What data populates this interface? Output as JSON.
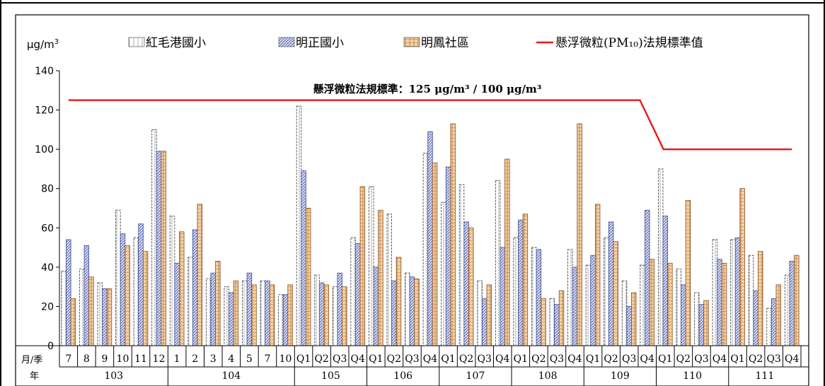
{
  "chart_data": {
    "type": "bar",
    "ylabel": "μg/m",
    "ylabel_sup": "3",
    "ylim": [
      0,
      140
    ],
    "yticks": [
      0,
      20,
      40,
      60,
      80,
      100,
      120,
      140
    ],
    "grid": false,
    "legend_position": "top",
    "annotation": "懸浮微粒法規標準：125 μg/m³ / 100 μg/m³",
    "row_labels": {
      "period": "月/季",
      "year": "年"
    },
    "categories": [
      "7",
      "8",
      "9",
      "10",
      "11",
      "12",
      "1",
      "2",
      "3",
      "4",
      "5",
      "7",
      "10",
      "Q1",
      "Q2",
      "Q3",
      "Q4",
      "Q1",
      "Q2",
      "Q3",
      "Q4",
      "Q1",
      "Q2",
      "Q3",
      "Q4",
      "Q1",
      "Q2",
      "Q3",
      "Q4",
      "Q1",
      "Q2",
      "Q3",
      "Q4",
      "Q1",
      "Q2",
      "Q3",
      "Q4",
      "Q1",
      "Q2",
      "Q3",
      "Q4"
    ],
    "years": [
      {
        "label": "103",
        "start": 0,
        "count": 6
      },
      {
        "label": "104",
        "start": 6,
        "count": 7
      },
      {
        "label": "105",
        "start": 13,
        "count": 4
      },
      {
        "label": "106",
        "start": 17,
        "count": 4
      },
      {
        "label": "107",
        "start": 21,
        "count": 4
      },
      {
        "label": "108",
        "start": 25,
        "count": 4
      },
      {
        "label": "109",
        "start": 29,
        "count": 4
      },
      {
        "label": "110",
        "start": 33,
        "count": 4
      },
      {
        "label": "111",
        "start": 37,
        "count": 4
      }
    ],
    "series": [
      {
        "name": "紅毛港國小",
        "fill": "#ffffff",
        "pattern": "brick-dashed",
        "values": [
          38,
          39,
          32,
          69,
          55,
          110,
          66,
          45,
          34,
          30,
          33,
          33,
          26,
          122,
          36,
          30,
          55,
          81,
          67,
          37,
          98,
          73,
          82,
          33,
          84,
          55,
          50,
          24,
          49,
          41,
          55,
          33,
          41,
          90,
          39,
          27,
          54,
          54,
          46,
          19,
          36
        ]
      },
      {
        "name": "明正國小",
        "fill": "#c9cfe8",
        "pattern": "diagonal",
        "values": [
          54,
          51,
          29,
          57,
          62,
          99,
          42,
          59,
          37,
          27,
          37,
          33,
          26,
          89,
          32,
          37,
          52,
          40,
          33,
          35,
          109,
          91,
          63,
          24,
          50,
          64,
          49,
          21,
          40,
          46,
          63,
          20,
          69,
          66,
          31,
          21,
          44,
          55,
          28,
          24,
          43
        ]
      },
      {
        "name": "明鳳社區",
        "fill": "#e8b98a",
        "pattern": "brick",
        "values": [
          24,
          35,
          29,
          51,
          48,
          99,
          58,
          72,
          43,
          33,
          31,
          31,
          31,
          70,
          31,
          30,
          81,
          69,
          45,
          34,
          93,
          113,
          60,
          31,
          95,
          67,
          24,
          28,
          113,
          72,
          53,
          27,
          44,
          42,
          74,
          23,
          42,
          80,
          48,
          31,
          46
        ]
      }
    ],
    "standard": {
      "name": "懸浮微粒(PM₁₀)法規標準值",
      "color": "#e51a1a",
      "points": [
        [
          0,
          125
        ],
        [
          31.6,
          125
        ],
        [
          32.9,
          100
        ],
        [
          40,
          100
        ]
      ]
    }
  },
  "legend": {
    "items": [
      "紅毛港國小",
      "明正國小",
      "明鳳社區",
      "懸浮微粒(PM₁₀)法規標準值"
    ]
  }
}
